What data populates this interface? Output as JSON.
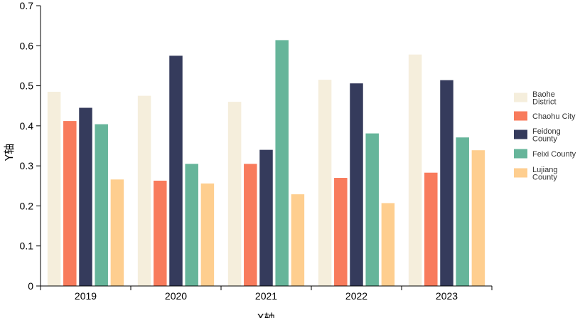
{
  "chart_data": {
    "type": "bar",
    "title": "",
    "xlabel": "X轴",
    "ylabel": "Y轴",
    "ylim": [
      0,
      0.7
    ],
    "yticks": [
      "0",
      "0.1",
      "0.2",
      "0.3",
      "0.4",
      "0.5",
      "0.6",
      "0.7"
    ],
    "categories": [
      "2019",
      "2020",
      "2021",
      "2022",
      "2023"
    ],
    "legend_position": "right",
    "grid": false,
    "series": [
      {
        "name": "Baohe District",
        "legend_lines": [
          "Baohe",
          "District"
        ],
        "color": "#f5eedc",
        "values": [
          0.485,
          0.475,
          0.46,
          0.515,
          0.578
        ]
      },
      {
        "name": "Chaohu City",
        "legend_lines": [
          "Chaohu City"
        ],
        "color": "#f87b5c",
        "values": [
          0.412,
          0.263,
          0.305,
          0.27,
          0.283
        ]
      },
      {
        "name": "Feidong County",
        "legend_lines": [
          "Feidong",
          "County"
        ],
        "color": "#353b5c",
        "values": [
          0.445,
          0.575,
          0.34,
          0.506,
          0.514
        ]
      },
      {
        "name": "Feixi County",
        "legend_lines": [
          "Feixi County"
        ],
        "color": "#66b59a",
        "values": [
          0.404,
          0.305,
          0.614,
          0.381,
          0.371
        ]
      },
      {
        "name": "Lujiang County",
        "legend_lines": [
          "Lujiang",
          "County"
        ],
        "color": "#fece8f",
        "values": [
          0.266,
          0.256,
          0.229,
          0.207,
          0.339
        ]
      }
    ]
  }
}
